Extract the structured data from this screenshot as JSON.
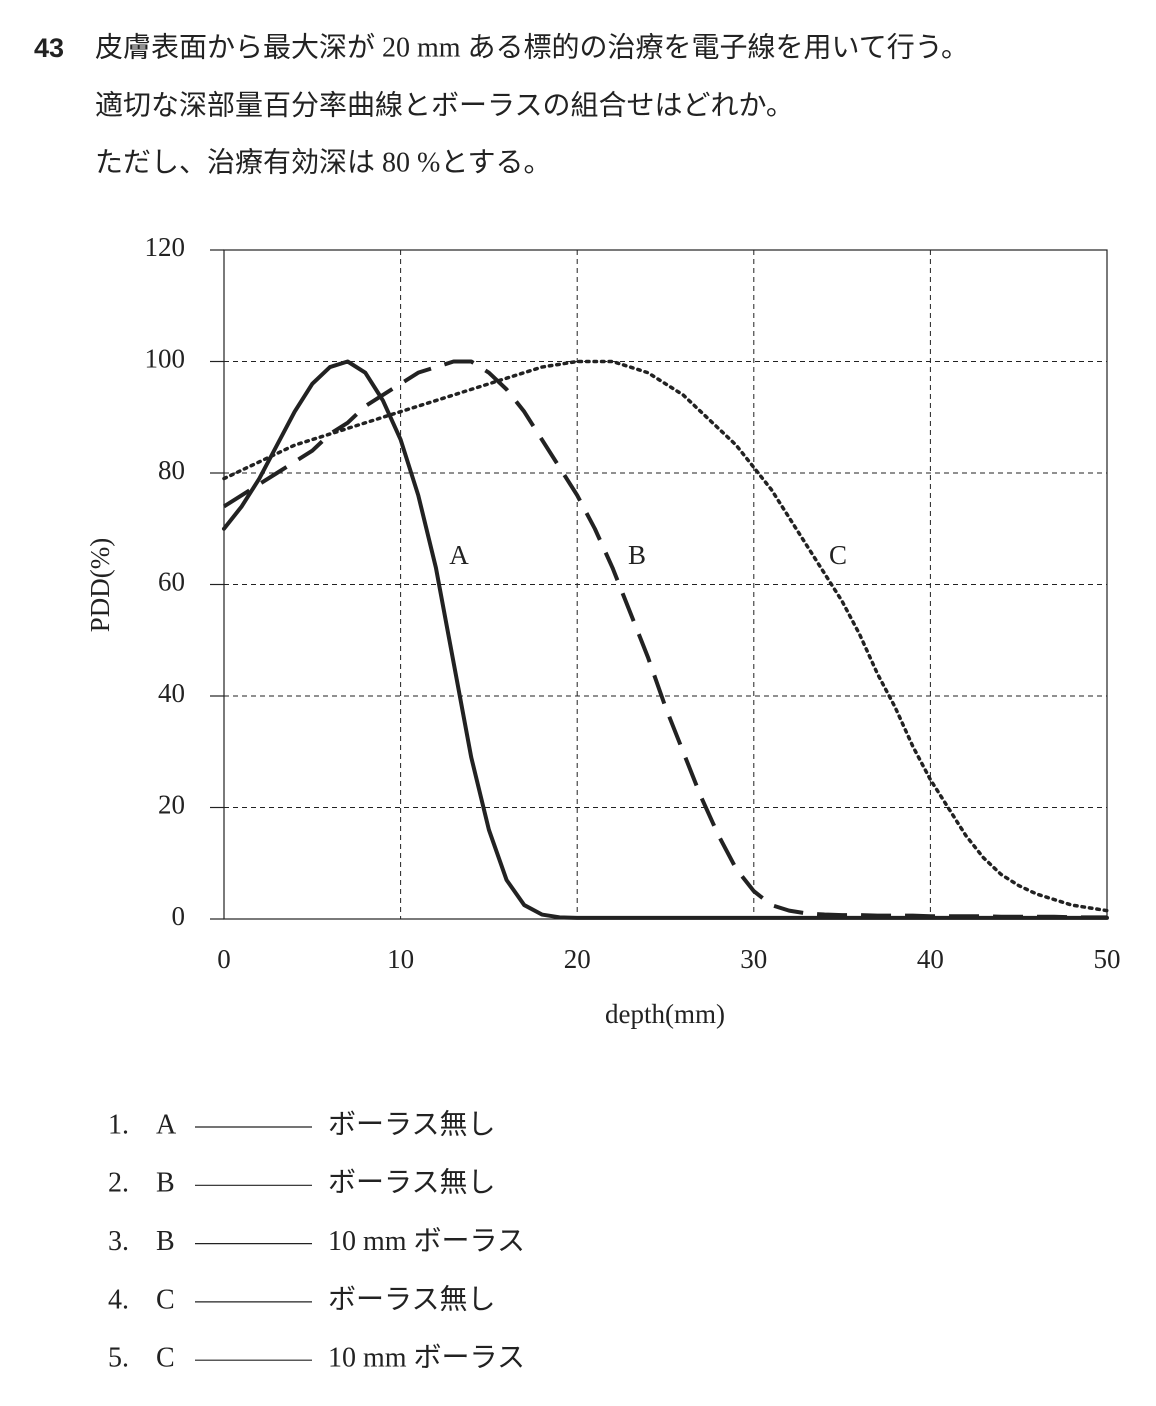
{
  "question": {
    "number": "43",
    "lines": [
      "皮膚表面から最大深が 20 mm ある標的の治療を電子線を用いて行う。",
      "適切な深部量百分率曲線とボーラスの組合せはどれか。",
      "ただし、治療有効深は 80 %とする。"
    ]
  },
  "chart_data": {
    "type": "line",
    "x_label": "depth(mm)",
    "y_label": "PDD(%)",
    "x": [
      0,
      1,
      2,
      3,
      4,
      5,
      6,
      7,
      8,
      9,
      10,
      11,
      12,
      13,
      14,
      15,
      16,
      17,
      18,
      19,
      20,
      21,
      22,
      23,
      24,
      25,
      26,
      27,
      28,
      29,
      30,
      31,
      32,
      33,
      34,
      35,
      36,
      37,
      38,
      39,
      40,
      41,
      42,
      43,
      44,
      45,
      46,
      47,
      48,
      49,
      50
    ],
    "series": [
      {
        "name": "A",
        "color": "#222222",
        "dash": "solid",
        "values": [
          70,
          74,
          79,
          85,
          91,
          96,
          99,
          100,
          98,
          93,
          86,
          76,
          63,
          46,
          29,
          16,
          7,
          2.5,
          0.8,
          0.3,
          0.2,
          0.2,
          0.2,
          0.2,
          0.2,
          0.2,
          0.2,
          0.2,
          0.2,
          0.2,
          0.2,
          0.2,
          0.2,
          0.2,
          0.2,
          0.2,
          0.2,
          0.2,
          0.2,
          0.2,
          0.2,
          0.2,
          0.2,
          0.2,
          0.2,
          0.2,
          0.2,
          0.2,
          0.2,
          0.2,
          0.2
        ]
      },
      {
        "name": "B",
        "color": "#222222",
        "dash": "dashed",
        "values": [
          74,
          76,
          78,
          80,
          82,
          84,
          87,
          89,
          92,
          94,
          96,
          98,
          99,
          100,
          100,
          98,
          95,
          91,
          86,
          81,
          76,
          70,
          63,
          55,
          47,
          38,
          30,
          22,
          15,
          9,
          5,
          2.5,
          1.5,
          1,
          0.8,
          0.7,
          0.7,
          0.6,
          0.6,
          0.6,
          0.5,
          0.5,
          0.5,
          0.5,
          0.4,
          0.4,
          0.4,
          0.4,
          0.3,
          0.3,
          0.3
        ]
      },
      {
        "name": "C",
        "color": "#222222",
        "dash": "dotted",
        "values": [
          79,
          80.5,
          82,
          83.5,
          85,
          86,
          87,
          88,
          89,
          90,
          91,
          92,
          93,
          94,
          95,
          96,
          97,
          98,
          99,
          99.5,
          100,
          100,
          100,
          99,
          98,
          96,
          94,
          91,
          88,
          85,
          81,
          77,
          72,
          67,
          62,
          57,
          51,
          44,
          38,
          31,
          25,
          20,
          15,
          11,
          8,
          6,
          4.5,
          3.5,
          2.5,
          2,
          1.5
        ]
      }
    ],
    "xlim": [
      0,
      50
    ],
    "xticks": [
      0,
      10,
      20,
      30,
      40,
      50
    ],
    "ylim": [
      0,
      120
    ],
    "yticks": [
      0,
      20,
      40,
      60,
      80,
      100,
      120
    ],
    "grid": true
  },
  "options": [
    {
      "number": "1.",
      "curve": "A",
      "bolus": "ボーラス無し"
    },
    {
      "number": "2.",
      "curve": "B",
      "bolus": "ボーラス無し"
    },
    {
      "number": "3.",
      "curve": "B",
      "bolus": "10 mm ボーラス"
    },
    {
      "number": "4.",
      "curve": "C",
      "bolus": "ボーラス無し"
    },
    {
      "number": "5.",
      "curve": "C",
      "bolus": "10 mm ボーラス"
    }
  ]
}
